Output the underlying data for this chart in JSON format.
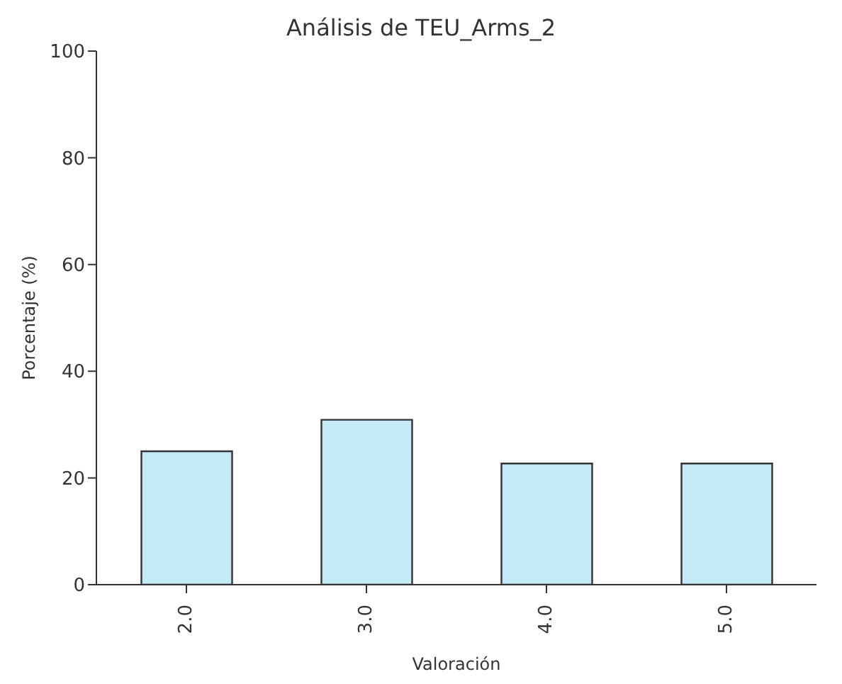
{
  "chart_data": {
    "type": "bar",
    "title": "Análisis de TEU_Arms_2",
    "xlabel": "Valoración",
    "ylabel": "Porcentaje (%)",
    "categories": [
      "2.0",
      "3.0",
      "4.0",
      "5.0"
    ],
    "values": [
      25,
      30.9,
      22.7,
      22.7
    ],
    "color": "#c4e9f7",
    "ylim": [
      0,
      100
    ],
    "yticks": [
      0,
      20,
      40,
      60,
      80,
      100
    ],
    "grid": false
  }
}
